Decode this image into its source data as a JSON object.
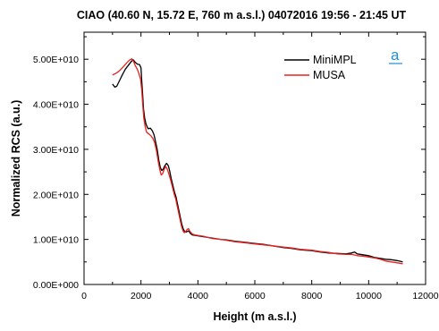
{
  "chart_data": {
    "type": "line",
    "title": "CIAO (40.60 N, 15.72 E, 760 m a.s.l.) 04072016 19:56 - 21:45 UT",
    "xlabel": "Height (m a.s.l.)",
    "ylabel": "Normalized RCS (a.u.)",
    "xlim": [
      0,
      12000
    ],
    "ylim": [
      0,
      56000000000
    ],
    "x_ticks": [
      0,
      2000,
      4000,
      6000,
      8000,
      10000,
      12000
    ],
    "x_tick_labels": [
      "0",
      "2000",
      "4000",
      "6000",
      "8000",
      "10000",
      "12000"
    ],
    "y_ticks": [
      0,
      10000000000,
      20000000000,
      30000000000,
      40000000000,
      50000000000
    ],
    "y_tick_labels": [
      "0.00E+000",
      "1.00E+010",
      "2.00E+010",
      "3.00E+010",
      "4.00E+010",
      "5.00E+010"
    ],
    "grid": false,
    "legend_position": "top-right",
    "panel_label": "a",
    "series": [
      {
        "name": "MiniMPL",
        "color": "#000000",
        "points": [
          [
            1000,
            44.5
          ],
          [
            1080,
            43.8
          ],
          [
            1150,
            44.0
          ],
          [
            1250,
            45.3
          ],
          [
            1350,
            46.6
          ],
          [
            1450,
            47.8
          ],
          [
            1550,
            48.6
          ],
          [
            1650,
            49.4
          ],
          [
            1720,
            49.9
          ],
          [
            1800,
            49.3
          ],
          [
            1880,
            48.9
          ],
          [
            1950,
            48.8
          ],
          [
            2000,
            48.1
          ],
          [
            2030,
            45.0
          ],
          [
            2060,
            42.0
          ],
          [
            2090,
            39.0
          ],
          [
            2130,
            37.0
          ],
          [
            2180,
            35.5
          ],
          [
            2250,
            34.6
          ],
          [
            2330,
            34.7
          ],
          [
            2400,
            34.1
          ],
          [
            2460,
            33.2
          ],
          [
            2520,
            31.5
          ],
          [
            2570,
            30.0
          ],
          [
            2630,
            27.5
          ],
          [
            2680,
            26.0
          ],
          [
            2730,
            25.3
          ],
          [
            2780,
            25.6
          ],
          [
            2830,
            26.3
          ],
          [
            2900,
            26.9
          ],
          [
            2960,
            26.4
          ],
          [
            3010,
            25.2
          ],
          [
            3060,
            23.6
          ],
          [
            3120,
            22.0
          ],
          [
            3180,
            20.5
          ],
          [
            3230,
            19.5
          ],
          [
            3280,
            18.0
          ],
          [
            3330,
            16.5
          ],
          [
            3380,
            15.0
          ],
          [
            3430,
            13.5
          ],
          [
            3480,
            12.4
          ],
          [
            3530,
            11.8
          ],
          [
            3580,
            11.6
          ],
          [
            3630,
            11.8
          ],
          [
            3680,
            11.9
          ],
          [
            3730,
            11.4
          ],
          [
            3800,
            11.0
          ],
          [
            3900,
            10.9
          ],
          [
            4000,
            10.8
          ],
          [
            4200,
            10.6
          ],
          [
            4500,
            10.3
          ],
          [
            4800,
            10.0
          ],
          [
            5000,
            9.9
          ],
          [
            5300,
            9.6
          ],
          [
            5600,
            9.4
          ],
          [
            6000,
            9.1
          ],
          [
            6300,
            8.9
          ],
          [
            6600,
            8.6
          ],
          [
            7000,
            8.2
          ],
          [
            7300,
            8.0
          ],
          [
            7600,
            7.7
          ],
          [
            8000,
            7.5
          ],
          [
            8300,
            7.2
          ],
          [
            8600,
            7.0
          ],
          [
            8900,
            6.9
          ],
          [
            9200,
            6.8
          ],
          [
            9400,
            7.0
          ],
          [
            9500,
            7.2
          ],
          [
            9600,
            6.8
          ],
          [
            9800,
            6.6
          ],
          [
            10000,
            6.4
          ],
          [
            10200,
            6.0
          ],
          [
            10400,
            5.8
          ],
          [
            10600,
            5.6
          ],
          [
            10800,
            5.5
          ],
          [
            11000,
            5.3
          ],
          [
            11200,
            5.0
          ]
        ]
      },
      {
        "name": "MUSA",
        "color": "#e8221f",
        "points": [
          [
            1000,
            46.5
          ],
          [
            1100,
            46.8
          ],
          [
            1200,
            47.2
          ],
          [
            1300,
            47.8
          ],
          [
            1400,
            48.5
          ],
          [
            1500,
            49.2
          ],
          [
            1600,
            49.8
          ],
          [
            1680,
            50.1
          ],
          [
            1740,
            49.5
          ],
          [
            1800,
            48.6
          ],
          [
            1870,
            47.8
          ],
          [
            1930,
            46.8
          ],
          [
            1990,
            45.5
          ],
          [
            2030,
            43.0
          ],
          [
            2060,
            40.0
          ],
          [
            2100,
            37.0
          ],
          [
            2150,
            35.0
          ],
          [
            2200,
            33.8
          ],
          [
            2280,
            33.4
          ],
          [
            2350,
            33.0
          ],
          [
            2420,
            32.4
          ],
          [
            2480,
            31.5
          ],
          [
            2540,
            29.8
          ],
          [
            2600,
            27.5
          ],
          [
            2660,
            25.5
          ],
          [
            2710,
            24.3
          ],
          [
            2760,
            24.6
          ],
          [
            2810,
            25.5
          ],
          [
            2870,
            26.2
          ],
          [
            2930,
            25.5
          ],
          [
            2990,
            24.3
          ],
          [
            3050,
            23.0
          ],
          [
            3110,
            21.5
          ],
          [
            3170,
            20.0
          ],
          [
            3220,
            19.0
          ],
          [
            3270,
            17.5
          ],
          [
            3320,
            16.0
          ],
          [
            3370,
            14.5
          ],
          [
            3420,
            13.0
          ],
          [
            3470,
            12.0
          ],
          [
            3520,
            11.5
          ],
          [
            3570,
            11.7
          ],
          [
            3620,
            12.2
          ],
          [
            3670,
            12.4
          ],
          [
            3720,
            11.8
          ],
          [
            3800,
            11.2
          ],
          [
            3900,
            11.0
          ],
          [
            4000,
            10.9
          ],
          [
            4200,
            10.7
          ],
          [
            4500,
            10.2
          ],
          [
            4800,
            10.0
          ],
          [
            5000,
            9.8
          ],
          [
            5300,
            9.5
          ],
          [
            5600,
            9.3
          ],
          [
            6000,
            9.0
          ],
          [
            6300,
            8.8
          ],
          [
            6600,
            8.6
          ],
          [
            7000,
            8.3
          ],
          [
            7300,
            8.1
          ],
          [
            7600,
            7.8
          ],
          [
            8000,
            7.6
          ],
          [
            8300,
            7.3
          ],
          [
            8600,
            7.1
          ],
          [
            8900,
            6.8
          ],
          [
            9200,
            6.7
          ],
          [
            9400,
            6.7
          ],
          [
            9600,
            6.4
          ],
          [
            9800,
            6.3
          ],
          [
            10000,
            6.1
          ],
          [
            10200,
            5.9
          ],
          [
            10400,
            5.6
          ],
          [
            10600,
            5.2
          ],
          [
            10800,
            5.0
          ],
          [
            11000,
            4.8
          ],
          [
            11200,
            4.6
          ]
        ],
        "y_scale_note": "y values in units of 1E+009"
      }
    ]
  }
}
